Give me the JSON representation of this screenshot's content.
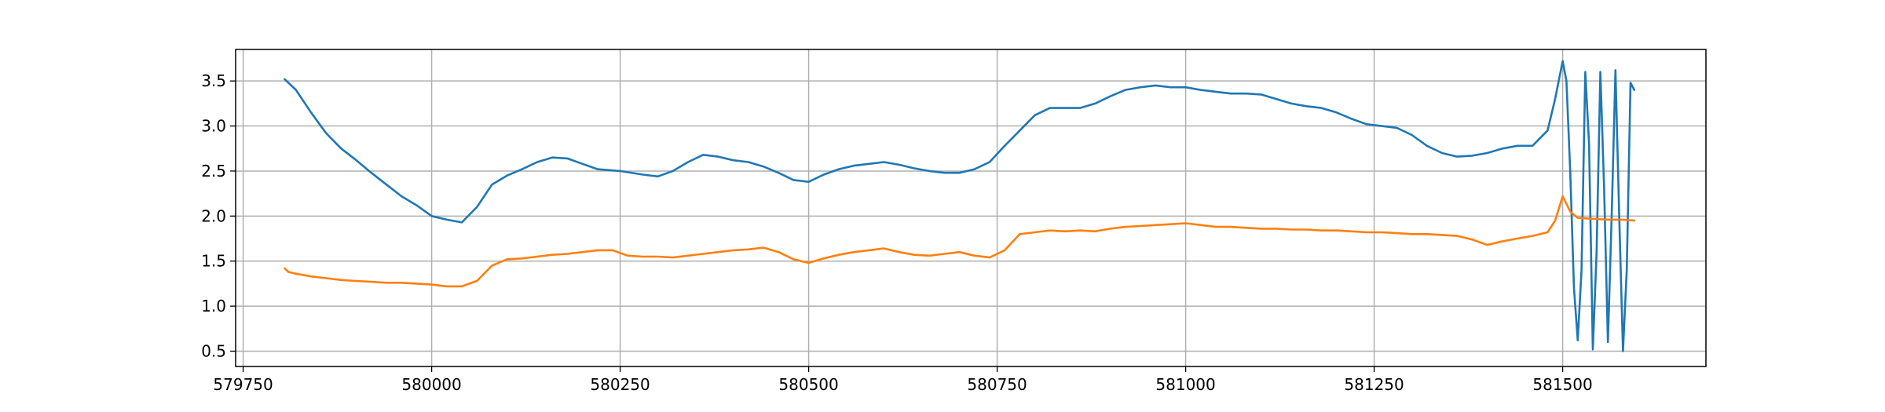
{
  "chart_data": {
    "type": "line",
    "title": "",
    "xlabel": "",
    "ylabel": "",
    "xlim": [
      579740,
      581690
    ],
    "ylim": [
      0.33,
      3.85
    ],
    "x_ticks": [
      579750,
      580000,
      580250,
      580500,
      580750,
      581000,
      581250,
      581500
    ],
    "x_tick_labels": [
      "579750",
      "580000",
      "580250",
      "580500",
      "580750",
      "581000",
      "581250",
      "581500"
    ],
    "y_ticks": [
      0.5,
      1.0,
      1.5,
      2.0,
      2.5,
      3.0,
      3.5
    ],
    "y_tick_labels": [
      "0.5",
      "1.0",
      "1.5",
      "2.0",
      "2.5",
      "3.0",
      "3.5"
    ],
    "grid": true,
    "legend": "none",
    "series": [
      {
        "color": "#1f77b4",
        "x": [
          579805,
          579820,
          579840,
          579860,
          579880,
          579900,
          579920,
          579940,
          579960,
          579980,
          580000,
          580020,
          580040,
          580060,
          580080,
          580100,
          580120,
          580140,
          580160,
          580180,
          580200,
          580220,
          580250,
          580280,
          580300,
          580320,
          580340,
          580360,
          580380,
          580400,
          580420,
          580440,
          580460,
          580480,
          580500,
          580520,
          580540,
          580560,
          580580,
          580600,
          580620,
          580640,
          580660,
          580680,
          580700,
          580720,
          580740,
          580760,
          580780,
          580800,
          580820,
          580840,
          580860,
          580880,
          580900,
          580920,
          580940,
          580960,
          580980,
          581000,
          581020,
          581040,
          581060,
          581080,
          581100,
          581120,
          581140,
          581160,
          581180,
          581200,
          581220,
          581240,
          581260,
          581280,
          581300,
          581320,
          581340,
          581360,
          581380,
          581400,
          581420,
          581440,
          581460,
          581480,
          581490,
          581500,
          581505,
          581510,
          581515,
          581520,
          581525,
          581530,
          581535,
          581540,
          581545,
          581550,
          581555,
          581560,
          581565,
          581570,
          581575,
          581580,
          581585,
          581590,
          581595
        ],
        "y": [
          3.52,
          3.4,
          3.15,
          2.92,
          2.75,
          2.62,
          2.48,
          2.35,
          2.22,
          2.12,
          2.0,
          1.96,
          1.93,
          2.1,
          2.35,
          2.45,
          2.52,
          2.6,
          2.65,
          2.64,
          2.58,
          2.52,
          2.5,
          2.46,
          2.44,
          2.5,
          2.6,
          2.68,
          2.66,
          2.62,
          2.6,
          2.55,
          2.48,
          2.4,
          2.38,
          2.46,
          2.52,
          2.56,
          2.58,
          2.6,
          2.57,
          2.53,
          2.5,
          2.48,
          2.48,
          2.52,
          2.6,
          2.78,
          2.95,
          3.12,
          3.2,
          3.2,
          3.2,
          3.25,
          3.33,
          3.4,
          3.43,
          3.45,
          3.43,
          3.43,
          3.4,
          3.38,
          3.36,
          3.36,
          3.35,
          3.3,
          3.25,
          3.22,
          3.2,
          3.15,
          3.08,
          3.02,
          3.0,
          2.98,
          2.9,
          2.78,
          2.7,
          2.66,
          2.67,
          2.7,
          2.75,
          2.78,
          2.78,
          2.95,
          3.3,
          3.72,
          3.5,
          2.5,
          1.2,
          0.62,
          1.4,
          3.6,
          2.8,
          0.52,
          1.6,
          3.6,
          2.3,
          0.6,
          2.0,
          3.62,
          2.0,
          0.5,
          1.4,
          3.48,
          3.4
        ]
      },
      {
        "color": "#ff7f0e",
        "x": [
          579805,
          579810,
          579820,
          579840,
          579860,
          579880,
          579900,
          579920,
          579940,
          579960,
          579980,
          580000,
          580020,
          580040,
          580060,
          580080,
          580100,
          580120,
          580140,
          580160,
          580180,
          580200,
          580220,
          580240,
          580260,
          580280,
          580300,
          580320,
          580340,
          580360,
          580380,
          580400,
          580420,
          580440,
          580460,
          580480,
          580500,
          580520,
          580540,
          580560,
          580580,
          580600,
          580620,
          580640,
          580660,
          580680,
          580700,
          580720,
          580740,
          580760,
          580780,
          580800,
          580820,
          580840,
          580860,
          580880,
          580900,
          580920,
          580940,
          580960,
          580980,
          581000,
          581020,
          581040,
          581060,
          581080,
          581100,
          581120,
          581140,
          581160,
          581180,
          581200,
          581220,
          581240,
          581260,
          581280,
          581300,
          581320,
          581340,
          581360,
          581380,
          581400,
          581420,
          581440,
          581460,
          581480,
          581490,
          581500,
          581510,
          581520,
          581540,
          581560,
          581580,
          581595
        ],
        "y": [
          1.42,
          1.38,
          1.36,
          1.33,
          1.31,
          1.29,
          1.28,
          1.27,
          1.26,
          1.26,
          1.25,
          1.24,
          1.22,
          1.22,
          1.28,
          1.45,
          1.52,
          1.53,
          1.55,
          1.57,
          1.58,
          1.6,
          1.62,
          1.62,
          1.56,
          1.55,
          1.55,
          1.54,
          1.56,
          1.58,
          1.6,
          1.62,
          1.63,
          1.65,
          1.6,
          1.52,
          1.48,
          1.53,
          1.57,
          1.6,
          1.62,
          1.64,
          1.6,
          1.57,
          1.56,
          1.58,
          1.6,
          1.56,
          1.54,
          1.62,
          1.8,
          1.82,
          1.84,
          1.83,
          1.84,
          1.83,
          1.86,
          1.88,
          1.89,
          1.9,
          1.91,
          1.92,
          1.9,
          1.88,
          1.88,
          1.87,
          1.86,
          1.86,
          1.85,
          1.85,
          1.84,
          1.84,
          1.83,
          1.82,
          1.82,
          1.81,
          1.8,
          1.8,
          1.79,
          1.78,
          1.74,
          1.68,
          1.72,
          1.75,
          1.78,
          1.82,
          1.95,
          2.22,
          2.05,
          1.98,
          1.97,
          1.96,
          1.96,
          1.95
        ]
      }
    ]
  }
}
